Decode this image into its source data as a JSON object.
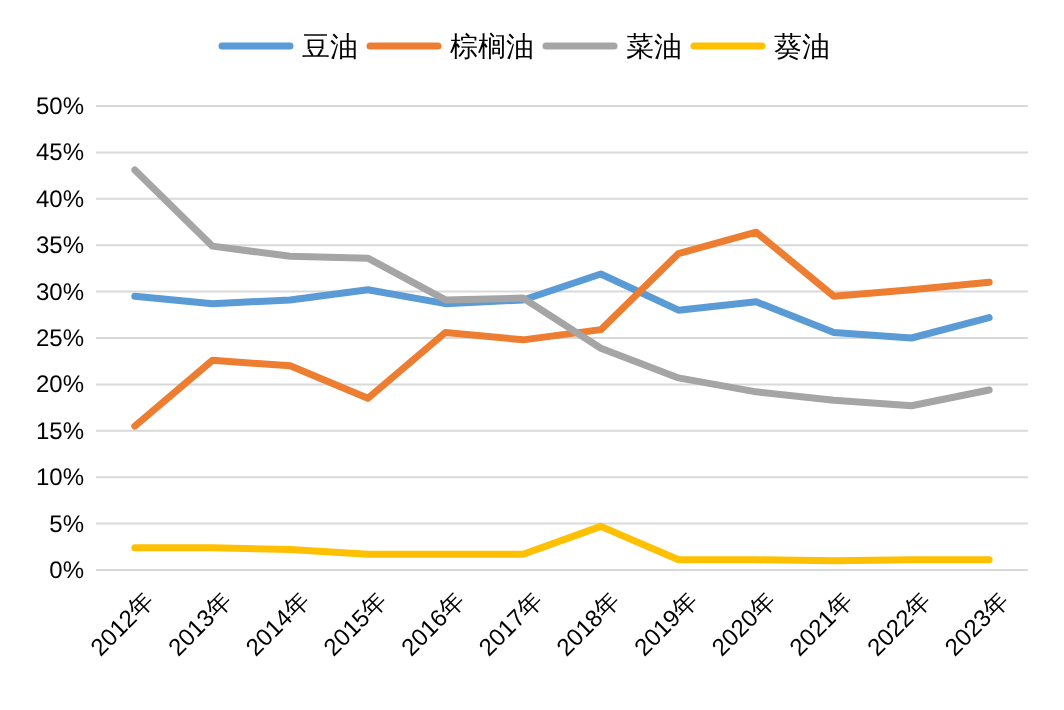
{
  "chart_data": {
    "type": "line",
    "categories": [
      "2012年",
      "2013年",
      "2014年",
      "2015年",
      "2016年",
      "2017年",
      "2018年",
      "2019年",
      "2020年",
      "2021年",
      "2022年",
      "2023年"
    ],
    "series": [
      {
        "name": "豆油",
        "color": "#5b9bd5",
        "values": [
          29.5,
          28.7,
          29.1,
          30.2,
          28.7,
          29.1,
          31.9,
          28.0,
          28.9,
          25.6,
          25.0,
          27.2
        ]
      },
      {
        "name": "棕榈油",
        "color": "#ed7d31",
        "values": [
          15.5,
          22.6,
          22.0,
          18.5,
          25.6,
          24.8,
          25.9,
          34.1,
          36.4,
          29.5,
          30.2,
          31.0
        ]
      },
      {
        "name": "菜油",
        "color": "#a5a5a5",
        "values": [
          43.1,
          34.9,
          33.8,
          33.6,
          29.1,
          29.3,
          23.9,
          20.7,
          19.2,
          18.3,
          17.7,
          19.4
        ]
      },
      {
        "name": "葵油",
        "color": "#ffc000",
        "values": [
          2.4,
          2.4,
          2.2,
          1.7,
          1.7,
          1.7,
          4.7,
          1.1,
          1.1,
          1.0,
          1.1,
          1.1
        ]
      }
    ],
    "ylim": [
      0,
      50
    ],
    "yticks": [
      {
        "value": 0,
        "label": "0%"
      },
      {
        "value": 5,
        "label": "5%"
      },
      {
        "value": 10,
        "label": "10%"
      },
      {
        "value": 15,
        "label": "15%"
      },
      {
        "value": 20,
        "label": "20%"
      },
      {
        "value": 25,
        "label": "25%"
      },
      {
        "value": 30,
        "label": "30%"
      },
      {
        "value": 35,
        "label": "35%"
      },
      {
        "value": 40,
        "label": "40%"
      },
      {
        "value": 45,
        "label": "45%"
      },
      {
        "value": 50,
        "label": "50%"
      }
    ],
    "grid": "y",
    "legend": "top",
    "marker": "none",
    "line_style": "solid"
  }
}
